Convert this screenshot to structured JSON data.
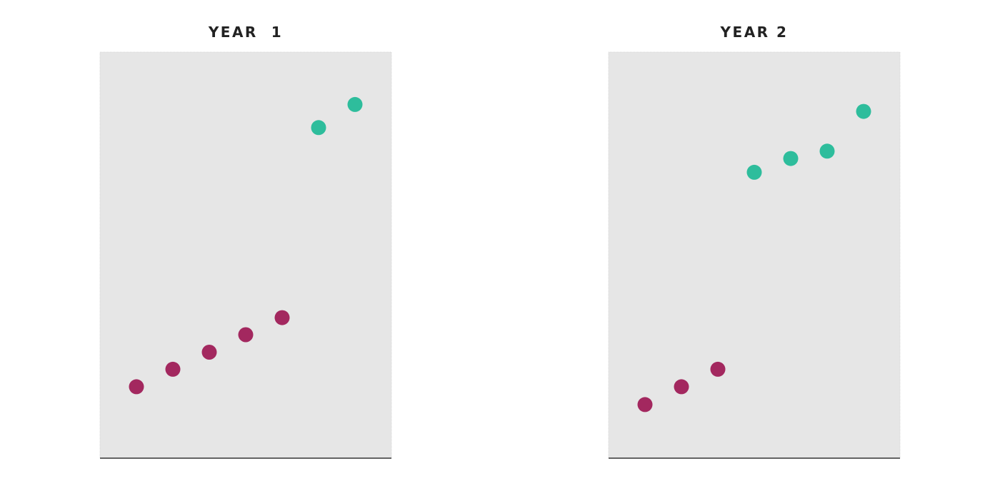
{
  "colors": {
    "panel_background": "#e6e6e6",
    "panel_border": "#d4d4d4",
    "baseline": "#333333",
    "magenta": "#a3285f",
    "teal": "#2ebd9c",
    "title_text": "#222222"
  },
  "chart_data": [
    {
      "type": "scatter",
      "title": "YEAR  1",
      "xlabel": "",
      "ylabel": "",
      "xlim": [
        0,
        8
      ],
      "ylim": [
        0,
        100
      ],
      "grid": false,
      "series": [
        {
          "color": "magenta",
          "points": [
            {
              "x": 1,
              "y": 17.6
            },
            {
              "x": 2,
              "y": 21.9
            },
            {
              "x": 3,
              "y": 26.1
            },
            {
              "x": 4,
              "y": 30.4
            },
            {
              "x": 5,
              "y": 34.6
            }
          ]
        },
        {
          "color": "teal",
          "points": [
            {
              "x": 6,
              "y": 81.4
            },
            {
              "x": 7,
              "y": 87.1
            }
          ]
        }
      ]
    },
    {
      "type": "scatter",
      "title": "YEAR 2",
      "xlabel": "",
      "ylabel": "",
      "xlim": [
        0,
        8
      ],
      "ylim": [
        0,
        100
      ],
      "grid": false,
      "series": [
        {
          "color": "magenta",
          "points": [
            {
              "x": 1,
              "y": 13.2
            },
            {
              "x": 2,
              "y": 17.6
            },
            {
              "x": 3,
              "y": 21.9
            }
          ]
        },
        {
          "color": "teal",
          "points": [
            {
              "x": 4,
              "y": 70.4
            },
            {
              "x": 5,
              "y": 73.8
            },
            {
              "x": 6,
              "y": 75.6
            },
            {
              "x": 7,
              "y": 85.4
            }
          ]
        }
      ]
    }
  ]
}
